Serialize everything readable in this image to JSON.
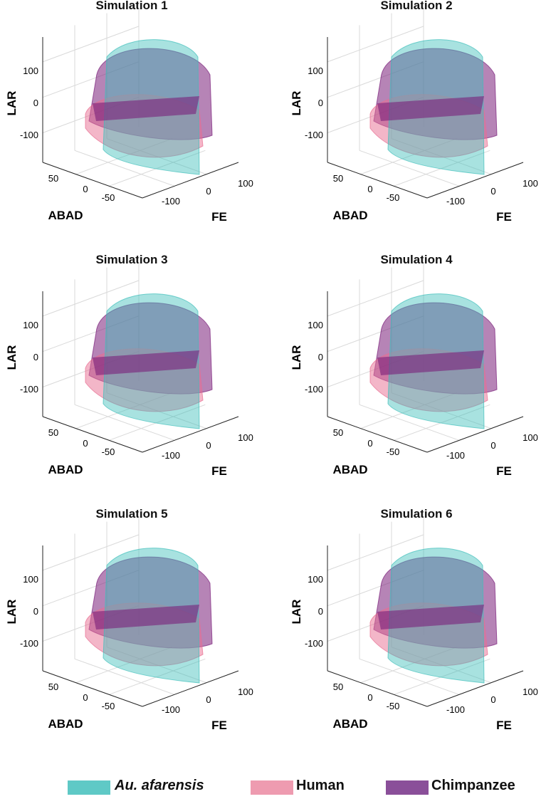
{
  "chart_data": [
    {
      "type": "3d-surface",
      "title": "Simulation 1",
      "xlabel": "FE",
      "ylabel": "ABAD",
      "zlabel": "LAR",
      "x_ticks": [
        "-100",
        "0",
        "100"
      ],
      "y_ticks": [
        "50",
        "0",
        "-50"
      ],
      "z_ticks": [
        "100",
        "0",
        "-100"
      ],
      "series": [
        {
          "name": "Au. afarensis"
        },
        {
          "name": "Human"
        },
        {
          "name": "Chimpanzee"
        }
      ],
      "grid": true
    },
    {
      "type": "3d-surface",
      "title": "Simulation 2",
      "xlabel": "FE",
      "ylabel": "ABAD",
      "zlabel": "LAR",
      "x_ticks": [
        "-100",
        "0",
        "100"
      ],
      "y_ticks": [
        "50",
        "0",
        "-50"
      ],
      "z_ticks": [
        "100",
        "0",
        "-100"
      ],
      "series": [
        {
          "name": "Au. afarensis"
        },
        {
          "name": "Human"
        },
        {
          "name": "Chimpanzee"
        }
      ],
      "grid": true
    },
    {
      "type": "3d-surface",
      "title": "Simulation 3",
      "xlabel": "FE",
      "ylabel": "ABAD",
      "zlabel": "LAR",
      "x_ticks": [
        "-100",
        "0",
        "100"
      ],
      "y_ticks": [
        "50",
        "0",
        "-50"
      ],
      "z_ticks": [
        "100",
        "0",
        "-100"
      ],
      "series": [
        {
          "name": "Au. afarensis"
        },
        {
          "name": "Human"
        },
        {
          "name": "Chimpanzee"
        }
      ],
      "grid": true
    },
    {
      "type": "3d-surface",
      "title": "Simulation 4",
      "xlabel": "FE",
      "ylabel": "ABAD",
      "zlabel": "LAR",
      "x_ticks": [
        "-100",
        "0",
        "100"
      ],
      "y_ticks": [
        "50",
        "0",
        "-50"
      ],
      "z_ticks": [
        "100",
        "0",
        "-100"
      ],
      "series": [
        {
          "name": "Au. afarensis"
        },
        {
          "name": "Human"
        },
        {
          "name": "Chimpanzee"
        }
      ],
      "grid": true
    },
    {
      "type": "3d-surface",
      "title": "Simulation 5",
      "xlabel": "FE",
      "ylabel": "ABAD",
      "zlabel": "LAR",
      "x_ticks": [
        "-100",
        "0",
        "100"
      ],
      "y_ticks": [
        "50",
        "0",
        "-50"
      ],
      "z_ticks": [
        "100",
        "0",
        "-100"
      ],
      "series": [
        {
          "name": "Au. afarensis"
        },
        {
          "name": "Human"
        },
        {
          "name": "Chimpanzee"
        }
      ],
      "grid": true
    },
    {
      "type": "3d-surface",
      "title": "Simulation 6",
      "xlabel": "FE",
      "ylabel": "ABAD",
      "zlabel": "LAR",
      "x_ticks": [
        "-100",
        "0",
        "100"
      ],
      "y_ticks": [
        "50",
        "0",
        "-50"
      ],
      "z_ticks": [
        "100",
        "0",
        "-100"
      ],
      "series": [
        {
          "name": "Au. afarensis"
        },
        {
          "name": "Human"
        },
        {
          "name": "Chimpanzee"
        }
      ],
      "grid": true
    }
  ],
  "legend": {
    "position": "bottom",
    "items": [
      {
        "label": "Au. afarensis",
        "color": "#5fc9c6",
        "italic": true
      },
      {
        "label": "Human",
        "color": "#ee9bb0",
        "italic": false
      },
      {
        "label": "Chimpanzee",
        "color": "#8a4f99",
        "italic": false
      }
    ]
  },
  "colors": {
    "au_afarensis": "#3fbfbb",
    "human": "#e86d92",
    "chimpanzee": "#7a1f7a",
    "grid": "#d9d9d9",
    "axis": "#222222"
  }
}
